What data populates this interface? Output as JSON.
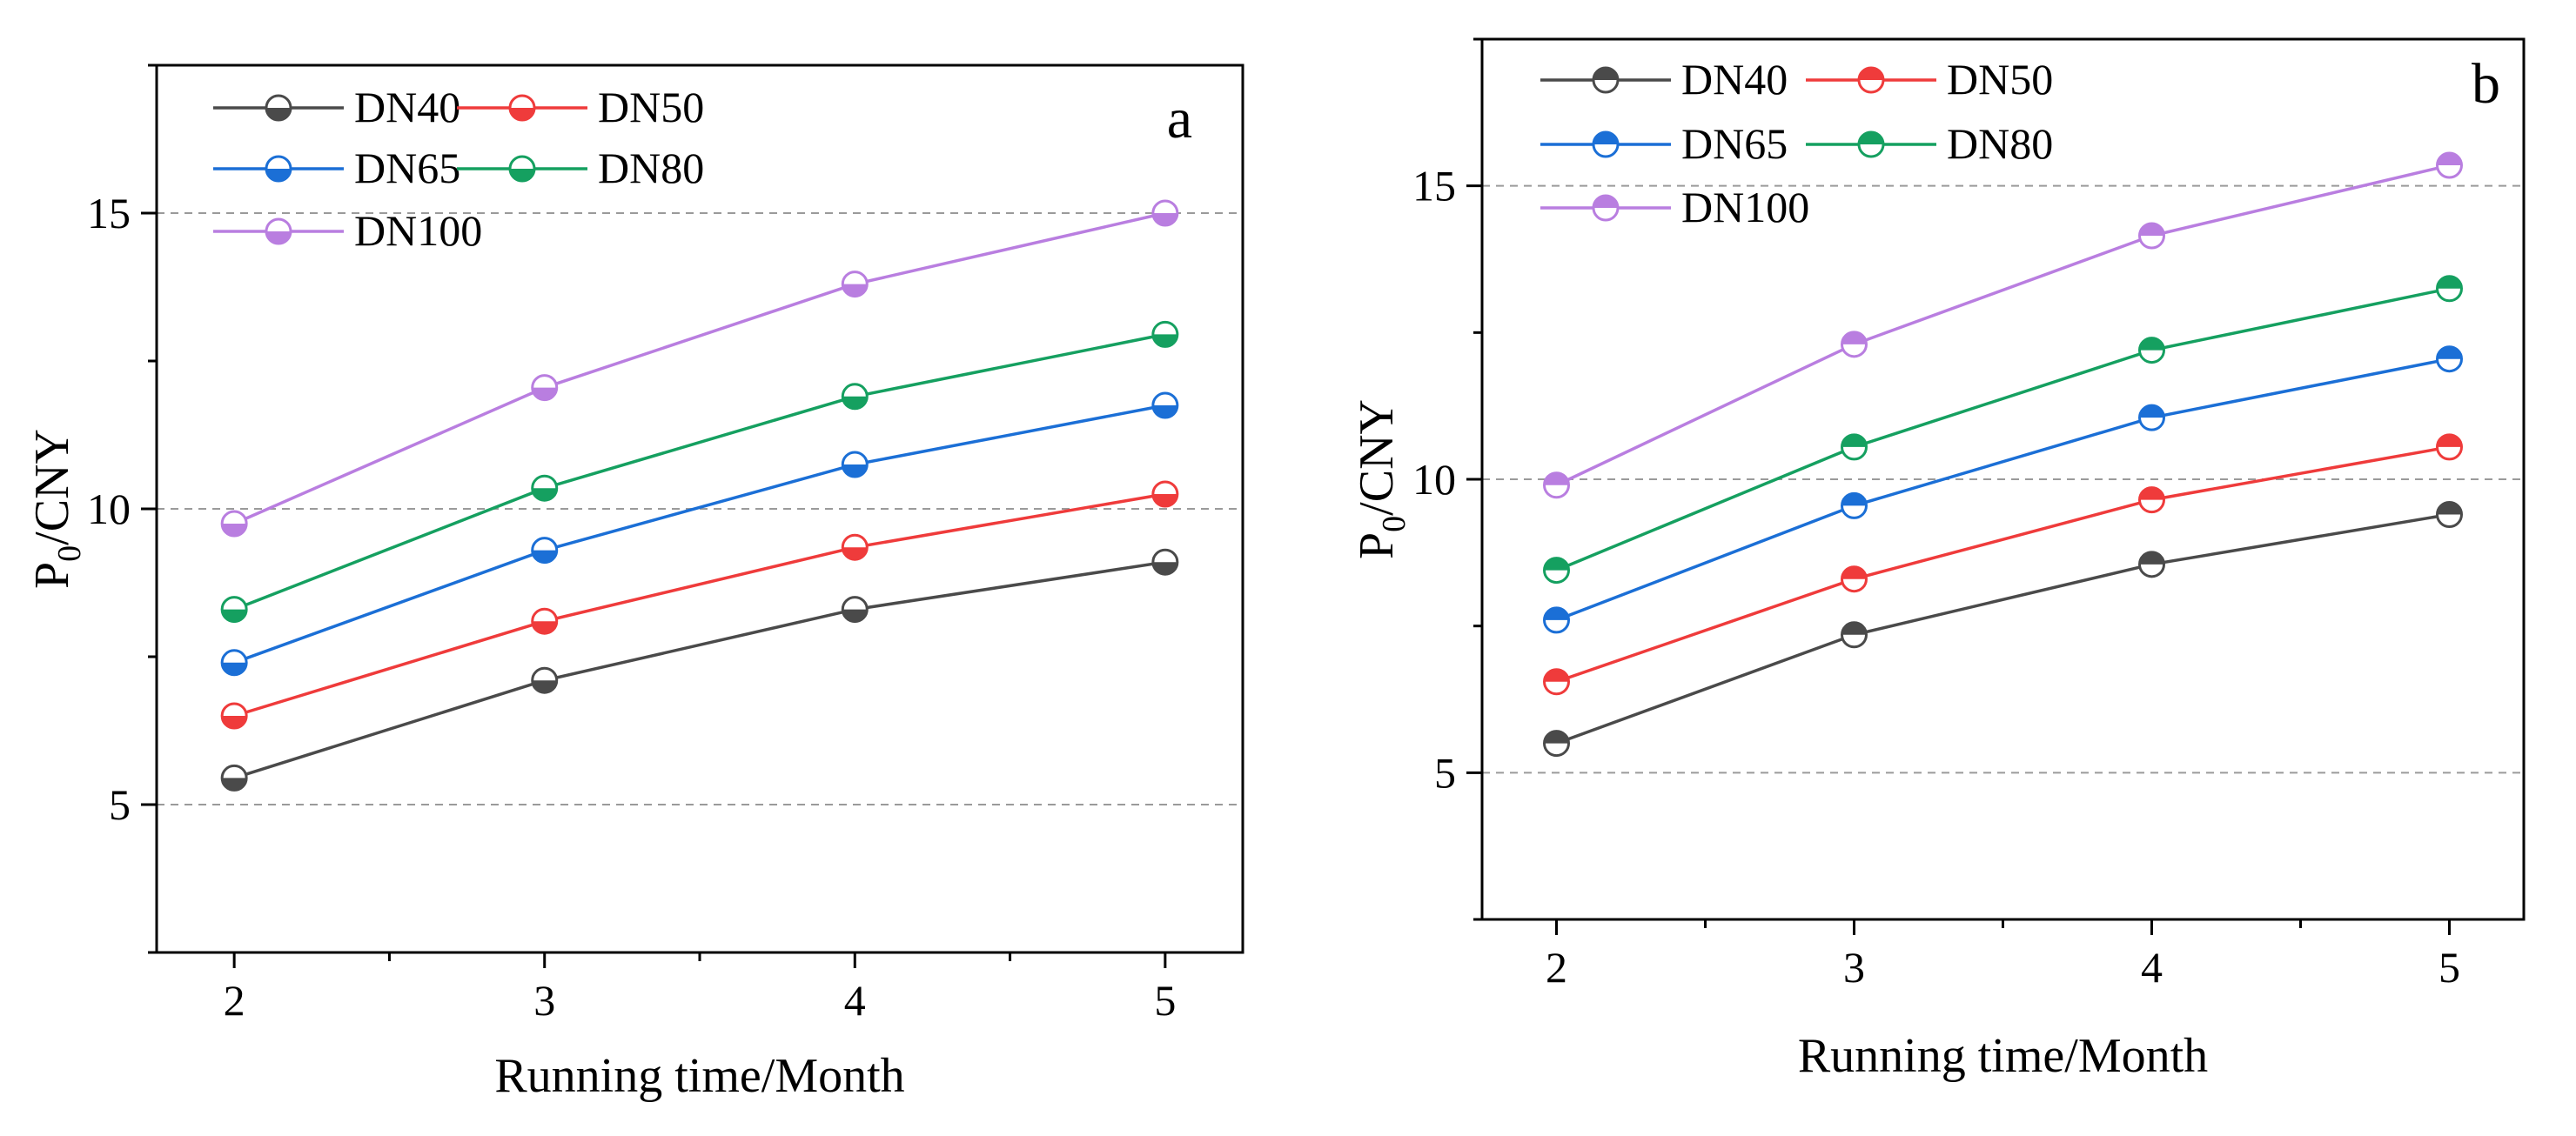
{
  "chart_data": [
    {
      "type": "line",
      "panel_label": "a",
      "xlabel": "Running time/Month",
      "ylabel_main": "P",
      "ylabel_sub": "0",
      "ylabel_rest": "/CNY",
      "x": [
        2,
        3,
        4,
        5
      ],
      "xticks": [
        "2",
        "3",
        "4",
        "5"
      ],
      "xlim": [
        1.75,
        5.25
      ],
      "ylim": [
        2.5,
        17.5
      ],
      "yticks": [
        5,
        10,
        15
      ],
      "ytick_labels": [
        "5",
        "10",
        "15"
      ],
      "gridlines_y": [
        5,
        10,
        15
      ],
      "legend_position": "top-left",
      "series": [
        {
          "name": "DN40",
          "color": "#4a4a4a",
          "values": [
            5.45,
            7.1,
            8.3,
            9.1
          ]
        },
        {
          "name": "DN50",
          "color": "#ef3b3b",
          "values": [
            6.5,
            8.1,
            9.35,
            10.25
          ]
        },
        {
          "name": "DN65",
          "color": "#1b6fd6",
          "values": [
            7.4,
            9.3,
            10.75,
            11.75
          ]
        },
        {
          "name": "DN80",
          "color": "#15a060",
          "values": [
            8.3,
            10.35,
            11.9,
            12.95
          ]
        },
        {
          "name": "DN100",
          "color": "#b97ee0",
          "values": [
            9.75,
            12.05,
            13.8,
            15.0
          ]
        }
      ]
    },
    {
      "type": "line",
      "panel_label": "b",
      "xlabel": "Running time/Month",
      "ylabel_main": "P",
      "ylabel_sub": "0",
      "ylabel_rest": "/CNY",
      "x": [
        2,
        3,
        4,
        5
      ],
      "xticks": [
        "2",
        "3",
        "4",
        "5"
      ],
      "xlim": [
        1.75,
        5.25
      ],
      "ylim": [
        2.5,
        17.5
      ],
      "yticks": [
        5,
        10,
        15
      ],
      "ytick_labels": [
        "5",
        "10",
        "15"
      ],
      "gridlines_y": [
        5,
        10,
        15
      ],
      "legend_position": "top-left",
      "series": [
        {
          "name": "DN40",
          "color": "#4a4a4a",
          "values": [
            5.5,
            7.35,
            8.55,
            9.4
          ]
        },
        {
          "name": "DN50",
          "color": "#ef3b3b",
          "values": [
            6.55,
            8.3,
            9.65,
            10.55
          ]
        },
        {
          "name": "DN65",
          "color": "#1b6fd6",
          "values": [
            7.6,
            9.55,
            11.05,
            12.05
          ]
        },
        {
          "name": "DN80",
          "color": "#15a060",
          "values": [
            8.45,
            10.55,
            12.2,
            13.25
          ]
        },
        {
          "name": "DN100",
          "color": "#b97ee0",
          "values": [
            9.9,
            12.3,
            14.15,
            15.35
          ]
        }
      ]
    }
  ]
}
